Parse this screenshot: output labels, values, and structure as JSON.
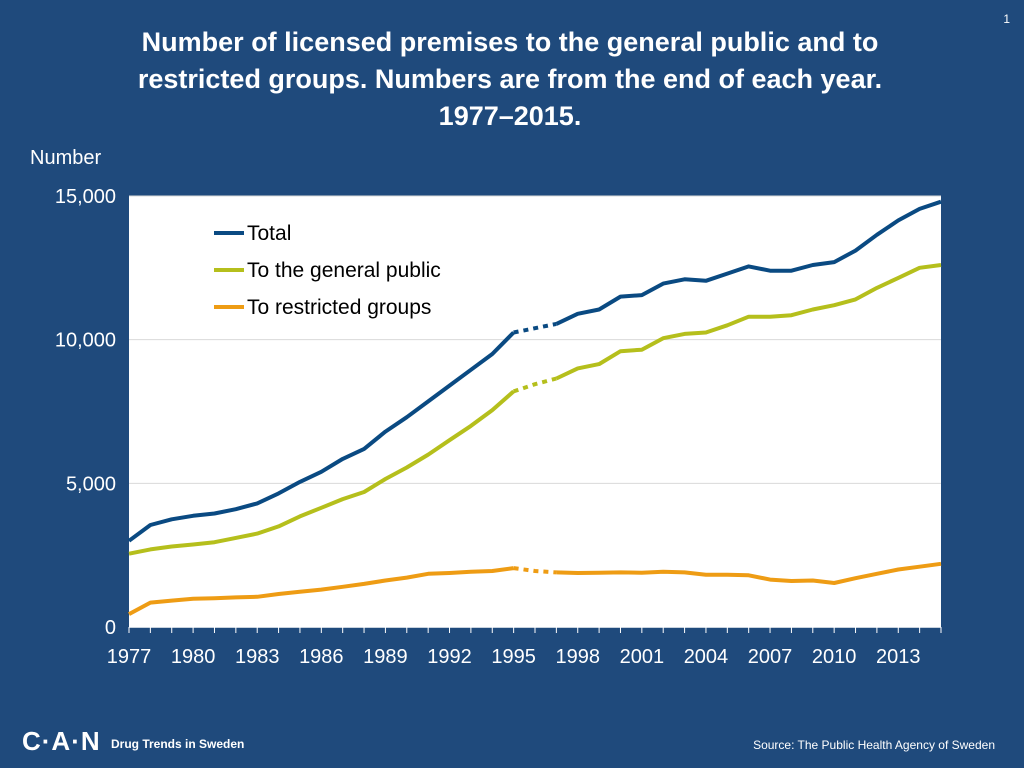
{
  "page_number": "1",
  "title_lines": [
    "Number of licensed premises to the general public and to",
    "restricted groups. Numbers are from the end of each year.",
    "1977–2015."
  ],
  "footer": {
    "logo": "C·A·N",
    "tagline": "Drug Trends in Sweden",
    "source": "Source: The Public Health Agency of Sweden"
  },
  "colors": {
    "background": "#1f4a7c",
    "total": "#0a4a82",
    "general_public": "#b5bf1c",
    "restricted": "#ee9c14",
    "plot_bg": "#ffffff",
    "grid": "#d9d9d9"
  },
  "chart_data": {
    "type": "line",
    "title": "Number of licensed premises to the general public and to restricted groups. Numbers are from the end of each year. 1977–2015.",
    "xlabel": "",
    "ylabel": "Number",
    "xlim": [
      1977,
      2015
    ],
    "ylim": [
      0,
      15000
    ],
    "yticks": [
      0,
      5000,
      10000,
      15000
    ],
    "ytick_labels": [
      "0",
      "5,000",
      "10,000",
      "15,000"
    ],
    "xtick_labels": [
      "1977",
      "1980",
      "1983",
      "1986",
      "1989",
      "1992",
      "1995",
      "1998",
      "2001",
      "2004",
      "2007",
      "2010",
      "2013"
    ],
    "grid": true,
    "legend_position": "top-left",
    "dashed_segment": [
      1995,
      1997
    ],
    "x": [
      1977,
      1978,
      1979,
      1980,
      1981,
      1982,
      1983,
      1984,
      1985,
      1986,
      1987,
      1988,
      1989,
      1990,
      1991,
      1992,
      1993,
      1994,
      1995,
      1996,
      1997,
      1998,
      1999,
      2000,
      2001,
      2002,
      2003,
      2004,
      2005,
      2006,
      2007,
      2008,
      2009,
      2010,
      2011,
      2012,
      2013,
      2014,
      2015
    ],
    "series": [
      {
        "name": "Total",
        "key": "total",
        "values": [
          3000,
          3550,
          3750,
          3870,
          3950,
          4100,
          4300,
          4650,
          5050,
          5400,
          5850,
          6200,
          6800,
          7300,
          7850,
          8400,
          8950,
          9500,
          10250,
          10400,
          10550,
          10900,
          11050,
          11500,
          11550,
          11950,
          12100,
          12050,
          12300,
          12550,
          12400,
          12400,
          12600,
          12700,
          13100,
          13650,
          14150,
          14550,
          14800
        ]
      },
      {
        "name": "To the general public",
        "key": "general_public",
        "values": [
          2550,
          2700,
          2800,
          2870,
          2950,
          3100,
          3250,
          3500,
          3850,
          4150,
          4450,
          4700,
          5150,
          5550,
          6000,
          6500,
          7000,
          7550,
          8200,
          8450,
          8650,
          9000,
          9150,
          9600,
          9650,
          10050,
          10200,
          10250,
          10500,
          10800,
          10800,
          10850,
          11050,
          11200,
          11400,
          11800,
          12150,
          12500,
          12600
        ]
      },
      {
        "name": "To restricted groups",
        "key": "restricted",
        "values": [
          450,
          850,
          920,
          980,
          1000,
          1030,
          1050,
          1150,
          1230,
          1300,
          1400,
          1500,
          1620,
          1720,
          1850,
          1880,
          1920,
          1950,
          2050,
          1950,
          1900,
          1880,
          1890,
          1900,
          1890,
          1920,
          1900,
          1820,
          1820,
          1800,
          1650,
          1600,
          1620,
          1530,
          1700,
          1850,
          2000,
          2100,
          2200
        ]
      }
    ]
  }
}
